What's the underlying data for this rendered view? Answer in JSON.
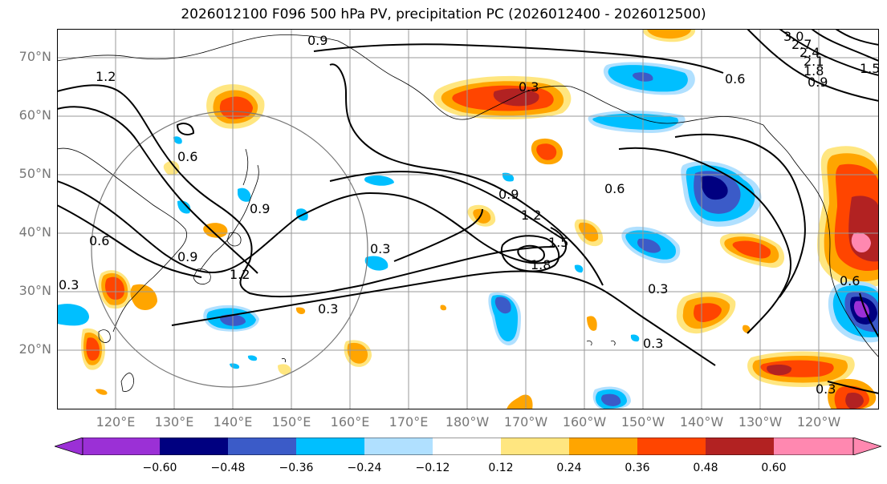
{
  "title": "2026012100 F096 500 hPa PV, precipitation PC (2026012400 - 2026012500)",
  "lat_labels": [
    "70°N",
    "60°N",
    "50°N",
    "40°N",
    "30°N",
    "20°N"
  ],
  "lon_labels": [
    "120°E",
    "130°E",
    "140°E",
    "150°E",
    "160°E",
    "170°E",
    "180°W",
    "170°W",
    "160°W",
    "150°W",
    "140°W",
    "130°W",
    "120°W"
  ],
  "colorbar": {
    "ticks": [
      "−0.60",
      "−0.48",
      "−0.36",
      "−0.24",
      "−0.12",
      "0.12",
      "0.24",
      "0.36",
      "0.48",
      "0.60"
    ],
    "colors": [
      "#9b30d6",
      "#000080",
      "#3b5bc8",
      "#00bfff",
      "#b0e0ff",
      "#ffffff",
      "#ffe680",
      "#ffa500",
      "#ff4500",
      "#b22222",
      "#ff88b0"
    ]
  },
  "pv_contour_labels": [
    "0.9",
    "0.6",
    "0.3",
    "1.2",
    "1.5",
    "1.8",
    "2.1",
    "2.4",
    "2.7",
    "3.0"
  ],
  "colors": {
    "neg_light": "#b0e0ff",
    "neg_mid": "#00bfff",
    "neg_strong": "#3b5bc8",
    "neg_max": "#000080",
    "pos_light": "#ffe680",
    "pos_mid": "#ffa500",
    "pos_strong": "#ff4500",
    "pos_max": "#b22222",
    "pos_extreme": "#ff88b0"
  }
}
